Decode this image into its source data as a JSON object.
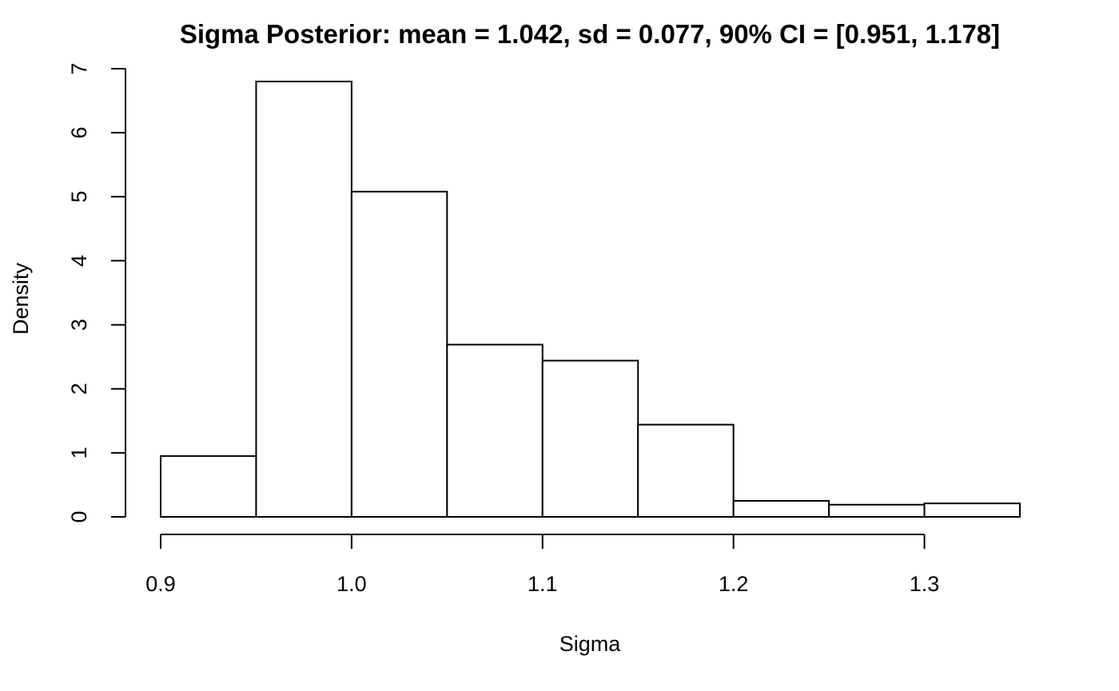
{
  "chart_data": {
    "type": "bar",
    "title": "Sigma Posterior: mean = 1.042, sd = 0.077, 90% CI = [0.951, 1.178]",
    "xlabel": "Sigma",
    "ylabel": "Density",
    "xlim": [
      0.9,
      1.35
    ],
    "ylim": [
      0,
      7
    ],
    "grid": false,
    "bins": [
      {
        "start": 0.9,
        "end": 0.95,
        "density": 0.95
      },
      {
        "start": 0.95,
        "end": 1.0,
        "density": 6.8
      },
      {
        "start": 1.0,
        "end": 1.05,
        "density": 5.08
      },
      {
        "start": 1.05,
        "end": 1.1,
        "density": 2.69
      },
      {
        "start": 1.1,
        "end": 1.15,
        "density": 2.44
      },
      {
        "start": 1.15,
        "end": 1.2,
        "density": 1.44
      },
      {
        "start": 1.2,
        "end": 1.25,
        "density": 0.25
      },
      {
        "start": 1.25,
        "end": 1.3,
        "density": 0.19
      },
      {
        "start": 1.3,
        "end": 1.35,
        "density": 0.21
      }
    ],
    "x_ticks": [
      {
        "value": 0.9,
        "label": "0.9"
      },
      {
        "value": 1.0,
        "label": "1.0"
      },
      {
        "value": 1.1,
        "label": "1.1"
      },
      {
        "value": 1.2,
        "label": "1.2"
      },
      {
        "value": 1.3,
        "label": "1.3"
      }
    ],
    "y_ticks": [
      {
        "value": 0,
        "label": "0"
      },
      {
        "value": 1,
        "label": "1"
      },
      {
        "value": 2,
        "label": "2"
      },
      {
        "value": 3,
        "label": "3"
      },
      {
        "value": 4,
        "label": "4"
      },
      {
        "value": 5,
        "label": "5"
      },
      {
        "value": 6,
        "label": "6"
      },
      {
        "value": 7,
        "label": "7"
      }
    ]
  }
}
